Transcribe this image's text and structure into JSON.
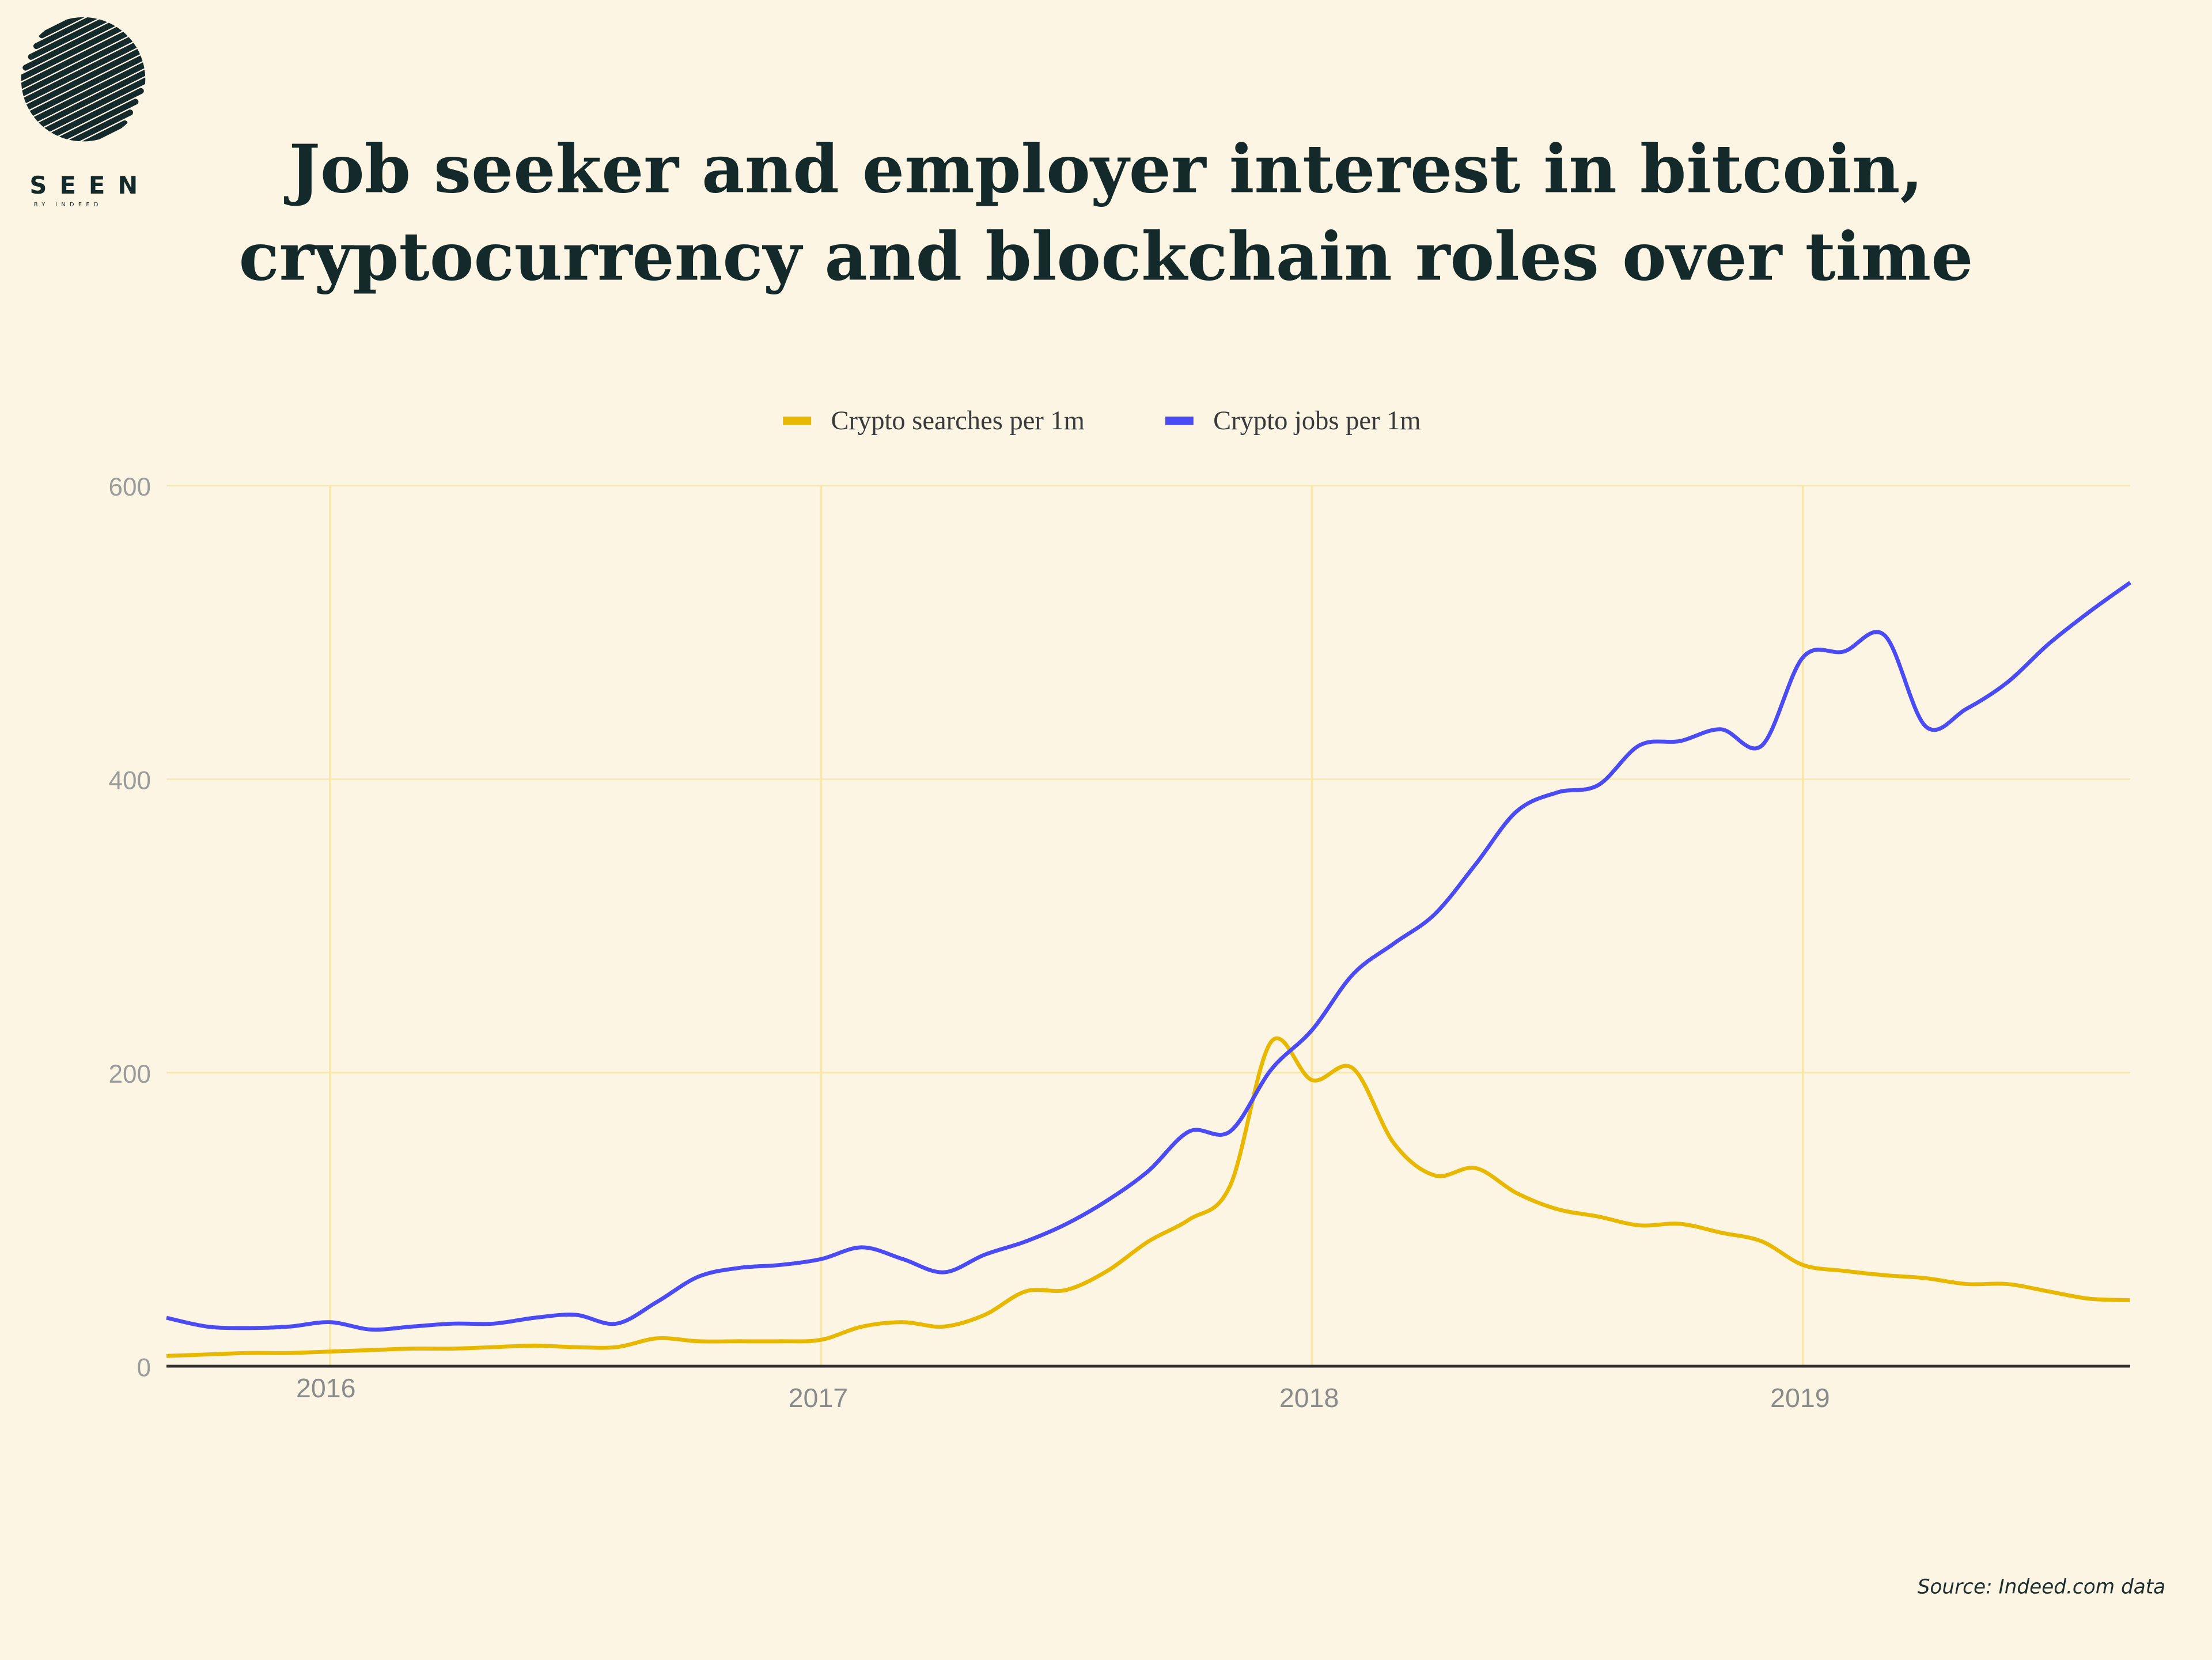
{
  "logo": {
    "text": "SEEN",
    "subtext": "BY INDEED"
  },
  "source": "Source: Indeed.com data",
  "chart_data": {
    "type": "line",
    "title": [
      "Job seeker and employer interest in bitcoin,",
      "cryptocurrency and blockchain roles over time"
    ],
    "xlabel": "",
    "ylabel": "",
    "ylim": [
      0,
      600
    ],
    "yticks": [
      "0",
      "200",
      "400",
      "600"
    ],
    "xticks": [
      "2016",
      "2017",
      "2018",
      "2019"
    ],
    "grid": true,
    "legend_position": "top-center",
    "x": [
      "2015-09",
      "2015-10",
      "2015-11",
      "2015-12",
      "2016-01",
      "2016-02",
      "2016-03",
      "2016-04",
      "2016-05",
      "2016-06",
      "2016-07",
      "2016-08",
      "2016-09",
      "2016-10",
      "2016-11",
      "2016-12",
      "2017-01",
      "2017-02",
      "2017-03",
      "2017-04",
      "2017-05",
      "2017-06",
      "2017-07",
      "2017-08",
      "2017-09",
      "2017-10",
      "2017-11",
      "2017-12",
      "2018-01",
      "2018-02",
      "2018-03",
      "2018-04",
      "2018-05",
      "2018-06",
      "2018-07",
      "2018-08",
      "2018-09",
      "2018-10",
      "2018-11",
      "2018-12",
      "2019-01",
      "2019-02",
      "2019-03",
      "2019-04",
      "2019-05",
      "2019-06",
      "2019-07",
      "2019-08",
      "2019-09"
    ],
    "series": [
      {
        "name": "Crypto searches per 1m",
        "color": "#E8B800",
        "values": [
          7,
          8,
          9,
          9,
          10,
          11,
          12,
          12,
          13,
          14,
          13,
          13,
          19,
          17,
          17,
          17,
          18,
          27,
          30,
          27,
          35,
          51,
          52,
          65,
          85,
          100,
          123,
          221,
          195,
          203,
          152,
          130,
          135,
          118,
          107,
          102,
          96,
          97,
          91,
          85,
          69,
          65,
          62,
          60,
          56,
          56,
          51,
          46,
          45
        ]
      },
      {
        "name": "Crypto jobs per 1m",
        "color": "#4B4BF5",
        "values": [
          33,
          27,
          26,
          27,
          30,
          25,
          27,
          29,
          29,
          33,
          35,
          29,
          44,
          61,
          67,
          69,
          73,
          81,
          73,
          64,
          76,
          85,
          97,
          113,
          133,
          160,
          160,
          202,
          229,
          267,
          288,
          308,
          342,
          378,
          391,
          396,
          423,
          426,
          434,
          423,
          483,
          487,
          498,
          436,
          448,
          466,
          492,
          514,
          534
        ]
      }
    ]
  },
  "colors": {
    "background": "#FCF5E3",
    "grid": "#F8E7A8",
    "axis": "#333333"
  }
}
